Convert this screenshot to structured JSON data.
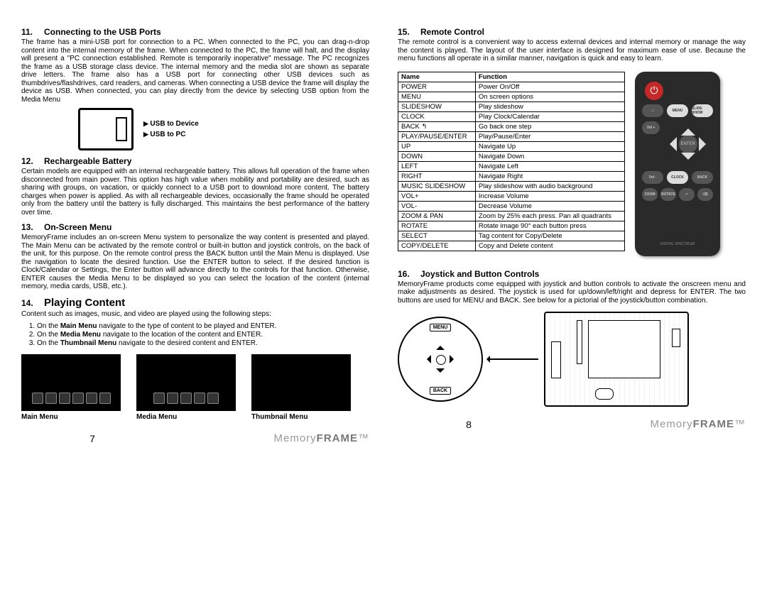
{
  "left": {
    "s11": {
      "num": "11.",
      "title": "Connecting to the USB Ports",
      "body": "The frame has a mini-USB port for connection to a PC. When connected to the PC, you can drag-n-drop content into the internal memory of the frame. When connected to the PC, the frame will halt, and the display will present a \"PC connection established. Remote is temporarily inoperative\" message. The PC recognizes the frame as a USB storage class device. The internal memory and the media slot are shown as separate drive letters. The frame also has a USB port for connecting other USB devices such as thumbdrives/flashdrives, card readers, and cameras. When connecting a USB device the frame will display the device as USB. When connected, you can play directly from the device by selecting USB option from the Media Menu",
      "usb_device": "USB to Device",
      "usb_pc": "USB to PC"
    },
    "s12": {
      "num": "12.",
      "title": "Rechargeable Battery",
      "body": "Certain models are equipped with an internal rechargeable battery. This allows full operation of the frame when disconnected from main power. This option has high value when mobility and portability are desired, such as sharing with groups, on vacation, or quickly connect to a USB port to download more content. The battery charges when power is applied. As with all rechargeable devices, occasionally the frame should be operated only from the battery until the battery is fully discharged. This maintains the best performance of the battery over time."
    },
    "s13": {
      "num": "13.",
      "title": "On-Screen Menu",
      "body": "MemoryFrame includes an on-screen Menu system to personalize the way content is presented and played. The Main Menu can be activated by the remote control or built-in button and joystick controls, on the back of the unit, for this purpose. On the remote control press the BACK button until the Main Menu is displayed. Use the navigation to locate the desired function. Use the ENTER button to select. If the desired function is Clock/Calendar or Settings, the Enter button will advance directly to the controls for that function. Otherwise, ENTER causes the Media Menu to be displayed so you can select the location of the content (internal memory, media cards, USB, etc.)."
    },
    "s14": {
      "num": "14.",
      "title": "Playing Content",
      "intro": "Content such as images, music, and video are played using the following steps:",
      "steps": [
        {
          "pre": "On the ",
          "b": "Main Menu",
          "post": " navigate to the type of content to be played and ENTER."
        },
        {
          "pre": "On the ",
          "b": "Media Menu",
          "post": " navigate to the location of the content and ENTER."
        },
        {
          "pre": "On the ",
          "b": "Thumbnail Menu",
          "post": " navigate to the desired content and ENTER."
        }
      ],
      "caps": [
        "Main Menu",
        "Media Menu",
        "Thumbnail Menu"
      ]
    },
    "pagenum": "7"
  },
  "right": {
    "s15": {
      "num": "15.",
      "title": "Remote Control",
      "body": "The remote control is a convenient way to access external devices and internal memory or manage the way the content is played. The layout of the user interface is designed for maximum ease of use. Because the menu functions all operate in a similar manner, navigation is quick and easy to learn.",
      "table_head": [
        "Name",
        "Function"
      ],
      "table_rows": [
        [
          "POWER",
          "Power On/Off"
        ],
        [
          "MENU",
          "On screen options"
        ],
        [
          "SLIDESHOW",
          "Play slideshow"
        ],
        [
          "CLOCK",
          "Play Clock/Calendar"
        ],
        [
          "BACK ↰",
          "Go back one step"
        ],
        [
          "PLAY/PAUSE/ENTER",
          "Play/Pause/Enter"
        ],
        [
          "UP",
          "Navigate Up"
        ],
        [
          "DOWN",
          "Navigate Down"
        ],
        [
          "LEFT",
          "Navigate Left"
        ],
        [
          "RIGHT",
          "Navigate Right"
        ],
        [
          "MUSIC SLIDESHOW",
          "Play slideshow with audio background"
        ],
        [
          "VOL+",
          "Increase Volume"
        ],
        [
          "VOL-",
          "Decrease Volume"
        ],
        [
          "ZOOM & PAN",
          "Zoom by 25% each press. Pan all quadrants"
        ],
        [
          "ROTATE",
          "Rotate image 90° each button press"
        ],
        [
          "SELECT",
          "Tag content for Copy/Delete"
        ],
        [
          "COPY/DELETE",
          "Copy and Delete content"
        ]
      ]
    },
    "s16": {
      "num": "16.",
      "title": "Joystick and Button Controls",
      "body": "MemoryFrame products come equipped with joystick and button controls to activate the onscreen menu and make adjustments as desired. The joystick is used for up/down/left/right and depress for ENTER. The two buttons are used for MENU and BACK. See below for a pictorial of the joystick/button combination.",
      "menu_label": "MENU",
      "back_label": "BACK"
    },
    "pagenum": "8"
  },
  "brand_light": "Memory",
  "brand_heavy": "FRAME",
  "remote_buttons": {
    "row1": [
      "♫",
      "MENU",
      "SLIDE SHOW"
    ],
    "row2": [
      "Vol +",
      "",
      "ENTER",
      "",
      ""
    ],
    "row3": [
      "Vol -",
      "CLOCK",
      "BACK"
    ],
    "row4": [
      "ZOOM",
      "ROTATE",
      "✓",
      "⌫"
    ]
  }
}
